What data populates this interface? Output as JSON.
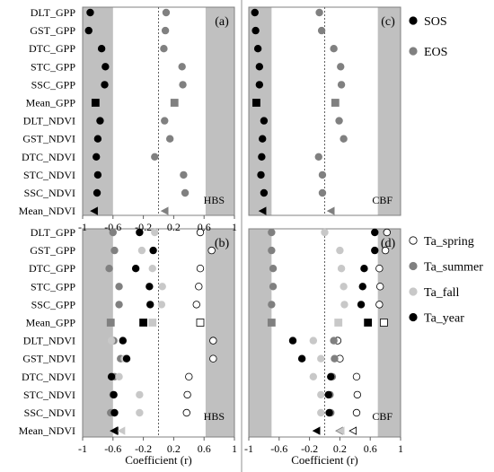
{
  "chart_data": [
    {
      "type": "scatter",
      "panel": "(a)",
      "site": "HBS",
      "categories": [
        "DLT_GPP",
        "GST_GPP",
        "DTC_GPP",
        "STC_GPP",
        "SSC_GPP",
        "Mean_GPP",
        "DLT_NDVI",
        "GST_NDVI",
        "DTC_NDVI",
        "STC_NDVI",
        "SSC_NDVI",
        "Mean_NDVI"
      ],
      "xlim": [
        -1,
        1
      ],
      "xticks": [
        "-1",
        "-0.6",
        "-0.2",
        "0.2",
        "0.6",
        "1"
      ],
      "shaded": [
        [
          -1,
          -0.6
        ],
        [
          0.62,
          1
        ]
      ],
      "dashed_x": 0,
      "series": [
        {
          "name": "SOS",
          "color": "#000000",
          "values": [
            -0.9,
            -0.92,
            -0.75,
            -0.7,
            -0.71,
            -0.83,
            -0.77,
            -0.8,
            -0.82,
            -0.8,
            -0.81,
            -0.84
          ]
        },
        {
          "name": "EOS",
          "color": "#808080",
          "values": [
            0.1,
            0.09,
            0.07,
            0.31,
            0.32,
            0.21,
            0.08,
            0.15,
            -0.05,
            0.33,
            0.35,
            0.09
          ]
        }
      ]
    },
    {
      "type": "scatter",
      "panel": "(c)",
      "site": "CBF",
      "categories": [
        "DLT_GPP",
        "GST_GPP",
        "DTC_GPP",
        "STC_GPP",
        "SSC_GPP",
        "Mean_GPP",
        "DLT_NDVI",
        "GST_NDVI",
        "DTC_NDVI",
        "STC_NDVI",
        "SSC_NDVI",
        "Mean_NDVI"
      ],
      "xlim": [
        -1,
        1
      ],
      "shaded": [
        [
          -1,
          -0.7
        ],
        [
          0.7,
          1
        ]
      ],
      "dashed_x": 0,
      "series": [
        {
          "name": "SOS",
          "color": "#000000",
          "values": [
            -0.92,
            -0.91,
            -0.88,
            -0.86,
            -0.86,
            -0.9,
            -0.8,
            -0.82,
            -0.83,
            -0.84,
            -0.8,
            -0.81
          ]
        },
        {
          "name": "EOS",
          "color": "#808080",
          "values": [
            -0.07,
            -0.04,
            0.12,
            0.21,
            0.22,
            0.14,
            0.19,
            0.25,
            -0.08,
            -0.03,
            -0.03,
            0.09
          ]
        }
      ]
    },
    {
      "type": "scatter",
      "panel": "(b)",
      "site": "HBS",
      "categories": [
        "DLT_GPP",
        "GST_GPP",
        "DTC_GPP",
        "STC_GPP",
        "SSC_GPP",
        "Mean_GPP",
        "DLT_NDVI",
        "GST_NDVI",
        "DTC_NDVI",
        "STC_NDVI",
        "SSC_NDVI",
        "Mean_NDVI"
      ],
      "xlim": [
        -1,
        1
      ],
      "xticks": [
        "-1",
        "-0.6",
        "-0.2",
        "0.2",
        "0.6",
        "1"
      ],
      "xlabel": "Coefficient (r)",
      "shaded": [
        [
          -1,
          -0.6
        ],
        [
          0.62,
          1
        ]
      ],
      "dashed_x": 0,
      "series": [
        {
          "name": "Ta_spring",
          "color": "#ffffff",
          "values": [
            0.55,
            0.7,
            0.55,
            0.53,
            0.5,
            0.55,
            0.72,
            0.72,
            0.4,
            0.38,
            0.37,
            -0.57
          ]
        },
        {
          "name": "Ta_summer",
          "color": "#808080",
          "values": [
            -0.6,
            -0.58,
            -0.65,
            -0.52,
            -0.52,
            -0.63,
            -0.59,
            -0.5,
            -0.58,
            -0.6,
            -0.63,
            -0.58
          ]
        },
        {
          "name": "Ta_fall",
          "color": "#c8c8c8",
          "values": [
            -0.05,
            -0.22,
            -0.08,
            0.05,
            0.04,
            -0.08,
            -0.62,
            -0.45,
            -0.52,
            -0.25,
            -0.25,
            -0.48
          ]
        },
        {
          "name": "Ta_year",
          "color": "#000000",
          "values": [
            -0.25,
            -0.07,
            -0.3,
            -0.12,
            -0.11,
            -0.2,
            -0.47,
            -0.42,
            -0.62,
            -0.59,
            -0.58,
            -0.58
          ]
        }
      ]
    },
    {
      "type": "scatter",
      "panel": "(d)",
      "site": "CBF",
      "categories": [
        "DLT_GPP",
        "GST_GPP",
        "DTC_GPP",
        "STC_GPP",
        "SSC_GPP",
        "Mean_GPP",
        "DLT_NDVI",
        "GST_NDVI",
        "DTC_NDVI",
        "STC_NDVI",
        "SSC_NDVI",
        "Mean_NDVI"
      ],
      "xlim": [
        -1,
        1
      ],
      "xticks": [
        "-1",
        "-0.6",
        "-0.2",
        "0.2",
        "0.6",
        "1"
      ],
      "xlabel": "Coefficient (r)",
      "shaded": [
        [
          -1,
          -0.7
        ],
        [
          0.7,
          1
        ]
      ],
      "dashed_x": 0,
      "series": [
        {
          "name": "Ta_spring",
          "color": "#ffffff",
          "values": [
            0.82,
            0.8,
            0.72,
            0.73,
            0.72,
            0.78,
            0.17,
            0.2,
            0.42,
            0.43,
            0.42,
            0.38
          ]
        },
        {
          "name": "Ta_summer",
          "color": "#808080",
          "values": [
            -0.7,
            -0.7,
            -0.68,
            -0.68,
            -0.7,
            -0.7,
            0.12,
            0.13,
            0.1,
            0.07,
            0.08,
            0.2
          ]
        },
        {
          "name": "Ta_fall",
          "color": "#c8c8c8",
          "values": [
            0.0,
            0.2,
            0.22,
            0.25,
            0.26,
            0.18,
            -0.15,
            -0.05,
            -0.15,
            -0.05,
            -0.05,
            0.22
          ]
        },
        {
          "name": "Ta_year",
          "color": "#000000",
          "values": [
            0.66,
            0.66,
            0.52,
            0.5,
            0.48,
            0.57,
            -0.42,
            -0.3,
            0.08,
            0.05,
            0.06,
            -0.1
          ]
        }
      ]
    }
  ]
}
